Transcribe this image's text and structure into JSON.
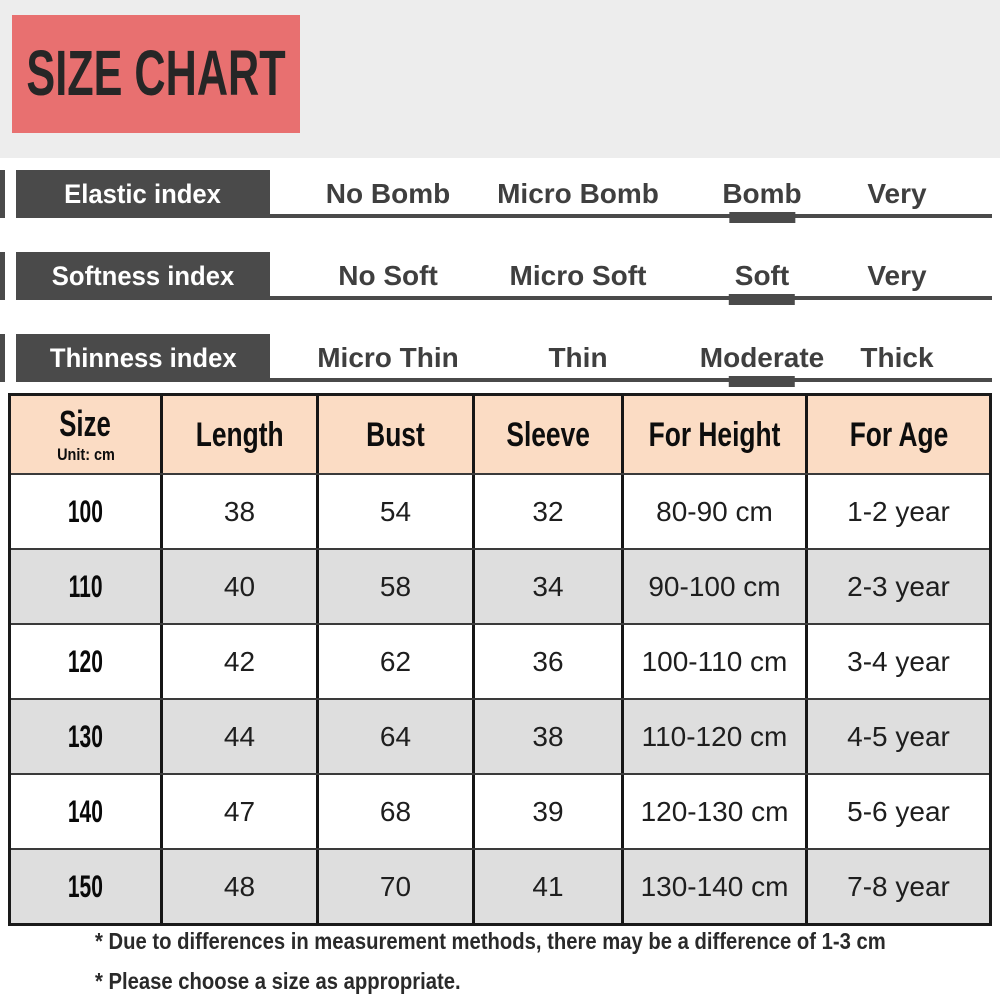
{
  "title": {
    "text": "SIZE CHART"
  },
  "colors": {
    "banner_bg": "#e87070",
    "top_band_bg": "#ededed",
    "index_label_bg": "#4a4a4a",
    "selected_marker": "#4a4a4a",
    "table_header_bg": "#fbdcc4",
    "alt_row_bg": "#dedede"
  },
  "index_rows": [
    {
      "label": "Elastic index",
      "options": [
        {
          "label": "No Bomb",
          "selected": false
        },
        {
          "label": "Micro Bomb",
          "selected": false
        },
        {
          "label": "Bomb",
          "selected": true
        },
        {
          "label": "Very",
          "selected": false
        }
      ]
    },
    {
      "label": "Softness index",
      "options": [
        {
          "label": "No Soft",
          "selected": false
        },
        {
          "label": "Micro Soft",
          "selected": false
        },
        {
          "label": "Soft",
          "selected": true
        },
        {
          "label": "Very",
          "selected": false
        }
      ]
    },
    {
      "label": "Thinness index",
      "options": [
        {
          "label": "Micro Thin",
          "selected": false
        },
        {
          "label": "Thin",
          "selected": false
        },
        {
          "label": "Moderate",
          "selected": true
        },
        {
          "label": "Thick",
          "selected": false
        }
      ]
    }
  ],
  "table": {
    "size_header": {
      "label": "Size",
      "unit": "Unit: cm"
    },
    "columns": [
      "Length",
      "Bust",
      "Sleeve",
      "For Height",
      "For Age"
    ],
    "rows": [
      [
        "100",
        "38",
        "54",
        "32",
        "80-90 cm",
        "1-2 year"
      ],
      [
        "110",
        "40",
        "58",
        "34",
        "90-100 cm",
        "2-3 year"
      ],
      [
        "120",
        "42",
        "62",
        "36",
        "100-110 cm",
        "3-4 year"
      ],
      [
        "130",
        "44",
        "64",
        "38",
        "110-120 cm",
        "4-5 year"
      ],
      [
        "140",
        "47",
        "68",
        "39",
        "120-130 cm",
        "5-6 year"
      ],
      [
        "150",
        "48",
        "70",
        "41",
        "130-140 cm",
        "7-8 year"
      ]
    ]
  },
  "notes": [
    "* Due to differences in measurement methods, there may be a difference of 1-3 cm",
    "* Please choose a size as appropriate."
  ]
}
